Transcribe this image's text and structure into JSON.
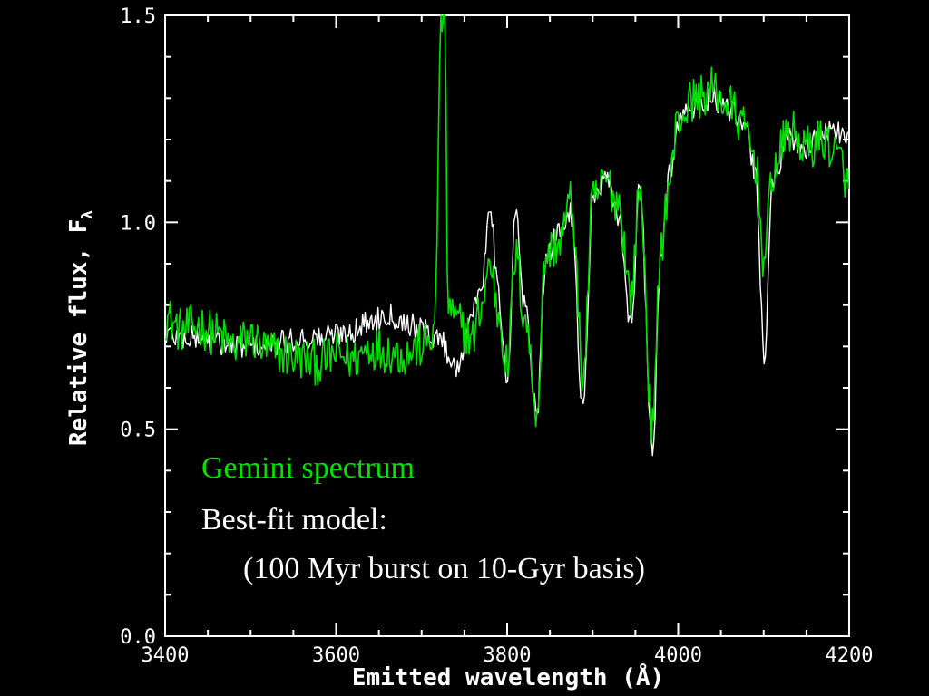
{
  "chart_data": {
    "type": "line",
    "title": "",
    "xlabel": "Emitted wavelength (Å)",
    "ylabel": "Relative flux, F",
    "ylabel_subscript": "λ",
    "xlim": [
      3400,
      4200
    ],
    "ylim": [
      0.0,
      1.5
    ],
    "x_ticks": [
      3400,
      3600,
      3800,
      4000,
      4200
    ],
    "x_tick_labels": [
      "3400",
      "3600",
      "3800",
      "4000",
      "4200"
    ],
    "y_ticks": [
      0.0,
      0.5,
      1.0,
      1.5
    ],
    "y_tick_labels": [
      "0.0",
      "0.5",
      "1.0",
      "1.5"
    ],
    "grid": false,
    "series": [
      {
        "name": "Gemini spectrum",
        "color": "#00e000",
        "x": [
          3400,
          3420,
          3440,
          3460,
          3480,
          3500,
          3520,
          3540,
          3560,
          3580,
          3600,
          3620,
          3640,
          3660,
          3680,
          3700,
          3715,
          3723,
          3727,
          3731,
          3740,
          3760,
          3770,
          3780,
          3790,
          3800,
          3810,
          3820,
          3835,
          3845,
          3860,
          3875,
          3889,
          3900,
          3915,
          3930,
          3945,
          3955,
          3970,
          3980,
          3990,
          4000,
          4020,
          4040,
          4060,
          4080,
          4090,
          4101,
          4110,
          4130,
          4150,
          4170,
          4190,
          4200
        ],
        "y": [
          0.77,
          0.74,
          0.75,
          0.73,
          0.7,
          0.72,
          0.69,
          0.68,
          0.67,
          0.66,
          0.68,
          0.67,
          0.7,
          0.69,
          0.68,
          0.7,
          0.73,
          1.5,
          1.5,
          0.8,
          0.76,
          0.72,
          0.8,
          0.9,
          0.78,
          0.65,
          0.92,
          0.78,
          0.55,
          0.92,
          0.95,
          1.05,
          0.63,
          1.05,
          1.1,
          1.05,
          0.82,
          1.08,
          0.5,
          0.95,
          1.1,
          1.25,
          1.3,
          1.32,
          1.28,
          1.22,
          1.15,
          0.9,
          1.12,
          1.22,
          1.18,
          1.2,
          1.15,
          1.08
        ]
      },
      {
        "name": "Best-fit model:",
        "color": "#ffffff",
        "x": [
          3400,
          3420,
          3440,
          3460,
          3480,
          3500,
          3520,
          3540,
          3560,
          3580,
          3600,
          3620,
          3640,
          3660,
          3680,
          3700,
          3720,
          3740,
          3760,
          3770,
          3780,
          3790,
          3800,
          3810,
          3820,
          3835,
          3845,
          3860,
          3875,
          3889,
          3900,
          3915,
          3930,
          3945,
          3955,
          3970,
          3980,
          3990,
          4000,
          4020,
          4040,
          4060,
          4080,
          4090,
          4101,
          4110,
          4130,
          4150,
          4170,
          4190,
          4200
        ],
        "y": [
          0.73,
          0.72,
          0.72,
          0.71,
          0.7,
          0.7,
          0.7,
          0.71,
          0.72,
          0.72,
          0.73,
          0.74,
          0.76,
          0.78,
          0.76,
          0.74,
          0.72,
          0.65,
          0.78,
          0.85,
          1.05,
          0.82,
          0.6,
          1.02,
          0.8,
          0.55,
          0.9,
          0.98,
          1.02,
          0.55,
          1.05,
          1.1,
          1.02,
          0.75,
          1.08,
          0.45,
          0.92,
          1.12,
          1.25,
          1.28,
          1.3,
          1.27,
          1.22,
          1.12,
          0.68,
          1.1,
          1.2,
          1.18,
          1.22,
          1.22,
          1.2
        ]
      }
    ],
    "legend_lines": [
      {
        "text": "Gemini spectrum",
        "color": "#00e000"
      },
      {
        "text": "Best-fit model:",
        "color": "#ffffff"
      },
      {
        "text": "(100 Myr burst on 10-Gyr basis)",
        "color": "#ffffff"
      }
    ]
  }
}
